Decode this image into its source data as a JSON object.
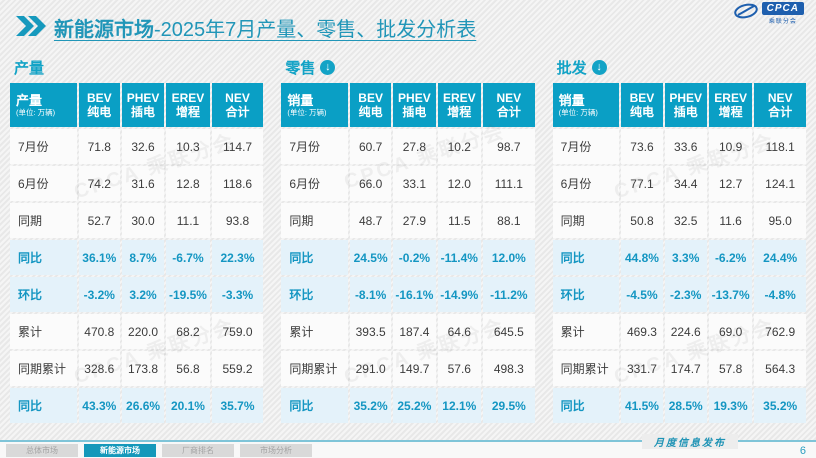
{
  "header": {
    "title_prefix": "新能源市场",
    "title_suffix": "-2025年7月产量、零售、批发分析表",
    "logo_main": "CPCA",
    "logo_sub": "乘联分会"
  },
  "unit_note": "(单位: 万辆)",
  "watermark": "CPCA 乘联分会",
  "columns": [
    {
      "l1": "BEV",
      "l2": "纯电"
    },
    {
      "l1": "PHEV",
      "l2": "插电"
    },
    {
      "l1": "EREV",
      "l2": "增程"
    },
    {
      "l1": "NEV",
      "l2": "合计"
    }
  ],
  "tables": [
    {
      "section": "产量",
      "has_arrow": false,
      "label_header": "产量",
      "rows": [
        {
          "label": "7月份",
          "values": [
            "71.8",
            "32.6",
            "10.3",
            "114.7"
          ],
          "highlight": false
        },
        {
          "label": "6月份",
          "values": [
            "74.2",
            "31.6",
            "12.8",
            "118.6"
          ],
          "highlight": false
        },
        {
          "label": "同期",
          "values": [
            "52.7",
            "30.0",
            "11.1",
            "93.8"
          ],
          "highlight": false
        },
        {
          "label": "同比",
          "values": [
            "36.1%",
            "8.7%",
            "-6.7%",
            "22.3%"
          ],
          "highlight": true
        },
        {
          "label": "环比",
          "values": [
            "-3.2%",
            "3.2%",
            "-19.5%",
            "-3.3%"
          ],
          "highlight": true
        },
        {
          "label": "累计",
          "values": [
            "470.8",
            "220.0",
            "68.2",
            "759.0"
          ],
          "highlight": false
        },
        {
          "label": "同期累计",
          "values": [
            "328.6",
            "173.8",
            "56.8",
            "559.2"
          ],
          "highlight": false
        },
        {
          "label": "同比",
          "values": [
            "43.3%",
            "26.6%",
            "20.1%",
            "35.7%"
          ],
          "highlight": true
        }
      ]
    },
    {
      "section": "零售",
      "has_arrow": true,
      "label_header": "销量",
      "rows": [
        {
          "label": "7月份",
          "values": [
            "60.7",
            "27.8",
            "10.2",
            "98.7"
          ],
          "highlight": false
        },
        {
          "label": "6月份",
          "values": [
            "66.0",
            "33.1",
            "12.0",
            "111.1"
          ],
          "highlight": false
        },
        {
          "label": "同期",
          "values": [
            "48.7",
            "27.9",
            "11.5",
            "88.1"
          ],
          "highlight": false
        },
        {
          "label": "同比",
          "values": [
            "24.5%",
            "-0.2%",
            "-11.4%",
            "12.0%"
          ],
          "highlight": true
        },
        {
          "label": "环比",
          "values": [
            "-8.1%",
            "-16.1%",
            "-14.9%",
            "-11.2%"
          ],
          "highlight": true
        },
        {
          "label": "累计",
          "values": [
            "393.5",
            "187.4",
            "64.6",
            "645.5"
          ],
          "highlight": false
        },
        {
          "label": "同期累计",
          "values": [
            "291.0",
            "149.7",
            "57.6",
            "498.3"
          ],
          "highlight": false
        },
        {
          "label": "同比",
          "values": [
            "35.2%",
            "25.2%",
            "12.1%",
            "29.5%"
          ],
          "highlight": true
        }
      ]
    },
    {
      "section": "批发",
      "has_arrow": true,
      "label_header": "销量",
      "rows": [
        {
          "label": "7月份",
          "values": [
            "73.6",
            "33.6",
            "10.9",
            "118.1"
          ],
          "highlight": false
        },
        {
          "label": "6月份",
          "values": [
            "77.1",
            "34.4",
            "12.7",
            "124.1"
          ],
          "highlight": false
        },
        {
          "label": "同期",
          "values": [
            "50.8",
            "32.5",
            "11.6",
            "95.0"
          ],
          "highlight": false
        },
        {
          "label": "同比",
          "values": [
            "44.8%",
            "3.3%",
            "-6.2%",
            "24.4%"
          ],
          "highlight": true
        },
        {
          "label": "环比",
          "values": [
            "-4.5%",
            "-2.3%",
            "-13.7%",
            "-4.8%"
          ],
          "highlight": true
        },
        {
          "label": "累计",
          "values": [
            "469.3",
            "224.6",
            "69.0",
            "762.9"
          ],
          "highlight": false
        },
        {
          "label": "同期累计",
          "values": [
            "331.7",
            "174.7",
            "57.8",
            "564.3"
          ],
          "highlight": false
        },
        {
          "label": "同比",
          "values": [
            "41.5%",
            "28.5%",
            "19.3%",
            "35.2%"
          ],
          "highlight": true
        }
      ]
    }
  ],
  "footer": {
    "tabs": [
      {
        "label": "总体市场",
        "active": false
      },
      {
        "label": "新能源市场",
        "active": true
      },
      {
        "label": "厂商排名",
        "active": false
      },
      {
        "label": "市场分析",
        "active": false
      }
    ],
    "release_label": "月度信息发布",
    "page_number": "6"
  },
  "chart_data": [
    {
      "type": "table",
      "title": "产量",
      "unit": "万辆",
      "columns": [
        "BEV纯电",
        "PHEV插电",
        "EREV增程",
        "NEV合计"
      ],
      "row_labels": [
        "7月份",
        "6月份",
        "同期",
        "同比",
        "环比",
        "累计",
        "同期累计",
        "同比"
      ],
      "values": [
        [
          71.8,
          32.6,
          10.3,
          114.7
        ],
        [
          74.2,
          31.6,
          12.8,
          118.6
        ],
        [
          52.7,
          30.0,
          11.1,
          93.8
        ],
        [
          "36.1%",
          "8.7%",
          "-6.7%",
          "22.3%"
        ],
        [
          "-3.2%",
          "3.2%",
          "-19.5%",
          "-3.3%"
        ],
        [
          470.8,
          220.0,
          68.2,
          759.0
        ],
        [
          328.6,
          173.8,
          56.8,
          559.2
        ],
        [
          "43.3%",
          "26.6%",
          "20.1%",
          "35.7%"
        ]
      ]
    },
    {
      "type": "table",
      "title": "零售",
      "unit": "万辆",
      "columns": [
        "BEV纯电",
        "PHEV插电",
        "EREV增程",
        "NEV合计"
      ],
      "row_labels": [
        "7月份",
        "6月份",
        "同期",
        "同比",
        "环比",
        "累计",
        "同期累计",
        "同比"
      ],
      "values": [
        [
          60.7,
          27.8,
          10.2,
          98.7
        ],
        [
          66.0,
          33.1,
          12.0,
          111.1
        ],
        [
          48.7,
          27.9,
          11.5,
          88.1
        ],
        [
          "24.5%",
          "-0.2%",
          "-11.4%",
          "12.0%"
        ],
        [
          "-8.1%",
          "-16.1%",
          "-14.9%",
          "-11.2%"
        ],
        [
          393.5,
          187.4,
          64.6,
          645.5
        ],
        [
          291.0,
          149.7,
          57.6,
          498.3
        ],
        [
          "35.2%",
          "25.2%",
          "12.1%",
          "29.5%"
        ]
      ]
    },
    {
      "type": "table",
      "title": "批发",
      "unit": "万辆",
      "columns": [
        "BEV纯电",
        "PHEV插电",
        "EREV增程",
        "NEV合计"
      ],
      "row_labels": [
        "7月份",
        "6月份",
        "同期",
        "同比",
        "环比",
        "累计",
        "同期累计",
        "同比"
      ],
      "values": [
        [
          73.6,
          33.6,
          10.9,
          118.1
        ],
        [
          77.1,
          34.4,
          12.7,
          124.1
        ],
        [
          50.8,
          32.5,
          11.6,
          95.0
        ],
        [
          "44.8%",
          "3.3%",
          "-6.2%",
          "24.4%"
        ],
        [
          "-4.5%",
          "-2.3%",
          "-13.7%",
          "-4.8%"
        ],
        [
          469.3,
          224.6,
          69.0,
          762.9
        ],
        [
          331.7,
          174.7,
          57.8,
          564.3
        ],
        [
          "41.5%",
          "28.5%",
          "19.3%",
          "35.2%"
        ]
      ]
    }
  ]
}
